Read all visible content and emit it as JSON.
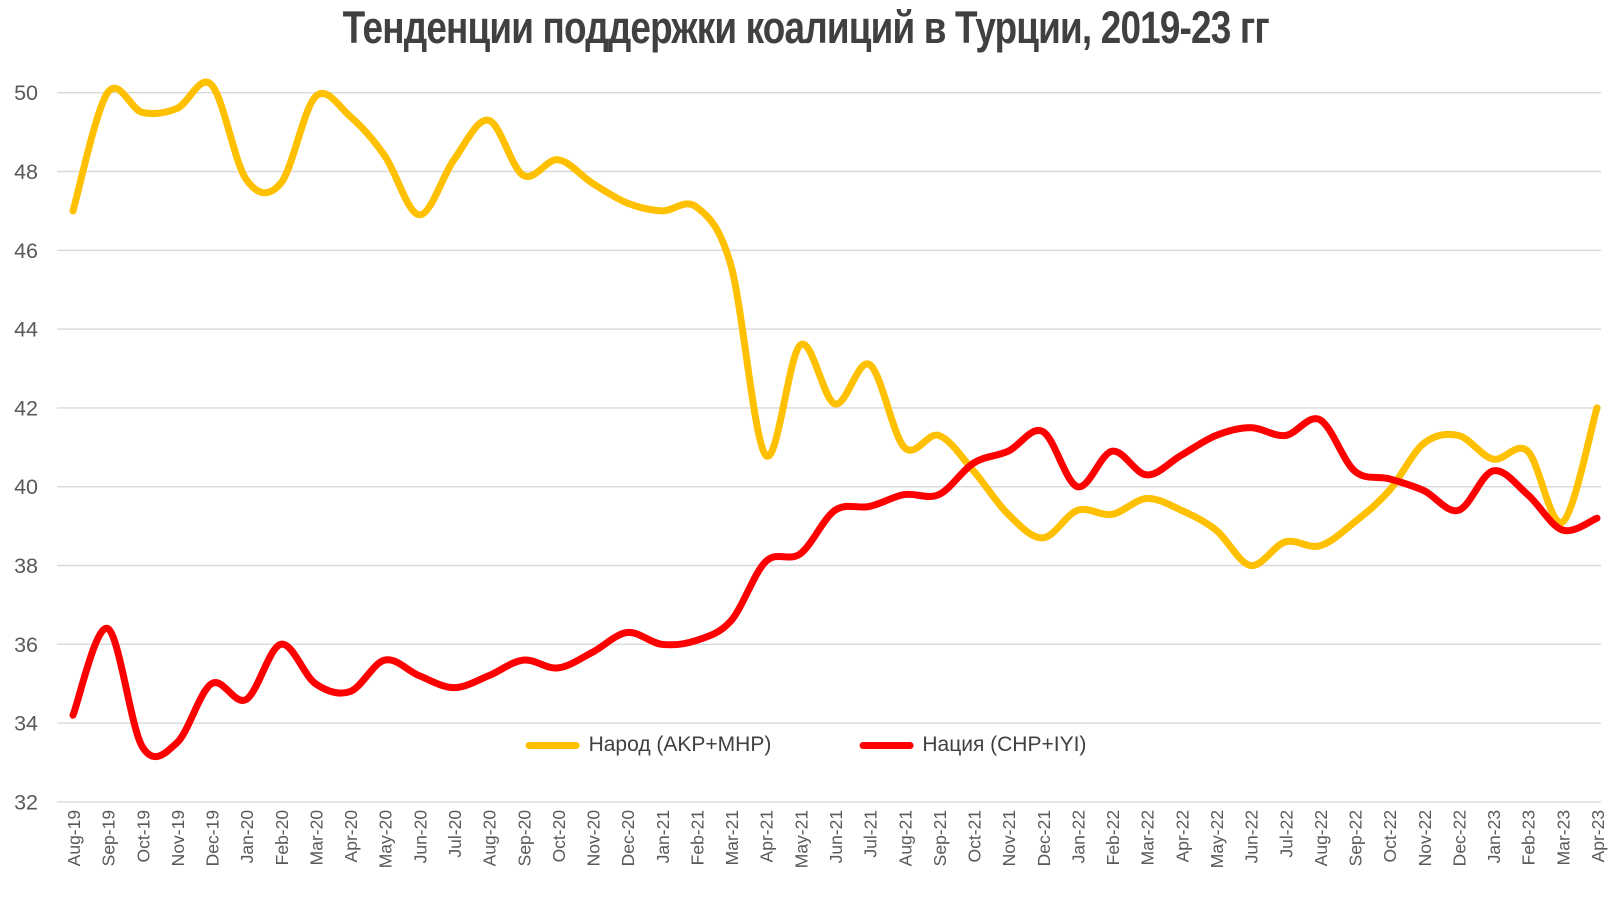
{
  "title": "Тенденции поддержки коалиций в Турции, 2019-23 гг",
  "colors": {
    "title_text": "#404040",
    "axis_text": "#595959",
    "gridline": "#d9d9d9",
    "background": "#ffffff",
    "narod_line": "#ffc000",
    "natsiya_line": "#fe0000"
  },
  "chart_data": {
    "type": "line",
    "title": "Тенденции поддержки коалиций в Турции, 2019-23 гг",
    "smoothed": true,
    "grid": true,
    "legend_position": "bottom-center",
    "xlabel": "",
    "ylabel": "",
    "ylim": [
      32,
      50
    ],
    "y_tick_step": 2,
    "y_tick_labels": [
      "32",
      "34",
      "36",
      "38",
      "40",
      "42",
      "44",
      "46",
      "48",
      "50"
    ],
    "x": [
      "Aug-19",
      "Sep-19",
      "Oct-19",
      "Nov-19",
      "Dec-19",
      "Jan-20",
      "Feb-20",
      "Mar-20",
      "Apr-20",
      "May-20",
      "Jun-20",
      "Jul-20",
      "Aug-20",
      "Sep-20",
      "Oct-20",
      "Nov-20",
      "Dec-20",
      "Jan-21",
      "Feb-21",
      "Mar-21",
      "Apr-21",
      "May-21",
      "Jun-21",
      "Jul-21",
      "Aug-21",
      "Sep-21",
      "Oct-21",
      "Nov-21",
      "Dec-21",
      "Jan-22",
      "Feb-22",
      "Mar-22",
      "Apr-22",
      "May-22",
      "Jun-22",
      "Jul-22",
      "Aug-22",
      "Sep-22",
      "Oct-22",
      "Nov-22",
      "Dec-22",
      "Jan-23",
      "Feb-23",
      "Mar-23",
      "Apr-23"
    ],
    "series": [
      {
        "name": "Народ (AKP+MHP)",
        "color": "#ffc000",
        "values": [
          47.0,
          50.0,
          49.5,
          49.6,
          50.2,
          47.8,
          47.7,
          49.9,
          49.4,
          48.4,
          46.9,
          48.3,
          49.3,
          47.9,
          48.3,
          47.7,
          47.2,
          47.0,
          47.1,
          45.6,
          40.8,
          43.6,
          42.1,
          43.1,
          41.0,
          41.3,
          40.4,
          39.3,
          38.7,
          39.4,
          39.3,
          39.7,
          39.4,
          38.9,
          38.0,
          38.6,
          38.5,
          39.1,
          39.9,
          41.1,
          41.3,
          40.7,
          40.9,
          39.1,
          42.0
        ]
      },
      {
        "name": "Нация (CHP+IYI)",
        "color": "#fe0000",
        "values": [
          34.2,
          36.4,
          33.4,
          33.5,
          35.0,
          34.6,
          36.0,
          35.0,
          34.8,
          35.6,
          35.2,
          34.9,
          35.2,
          35.6,
          35.4,
          35.8,
          36.3,
          36.0,
          36.1,
          36.6,
          38.1,
          38.3,
          39.4,
          39.5,
          39.8,
          39.8,
          40.6,
          40.9,
          41.4,
          40.0,
          40.9,
          40.3,
          40.8,
          41.3,
          41.5,
          41.3,
          41.7,
          40.4,
          40.2,
          39.9,
          39.4,
          40.4,
          39.8,
          38.9,
          39.2
        ]
      }
    ]
  }
}
